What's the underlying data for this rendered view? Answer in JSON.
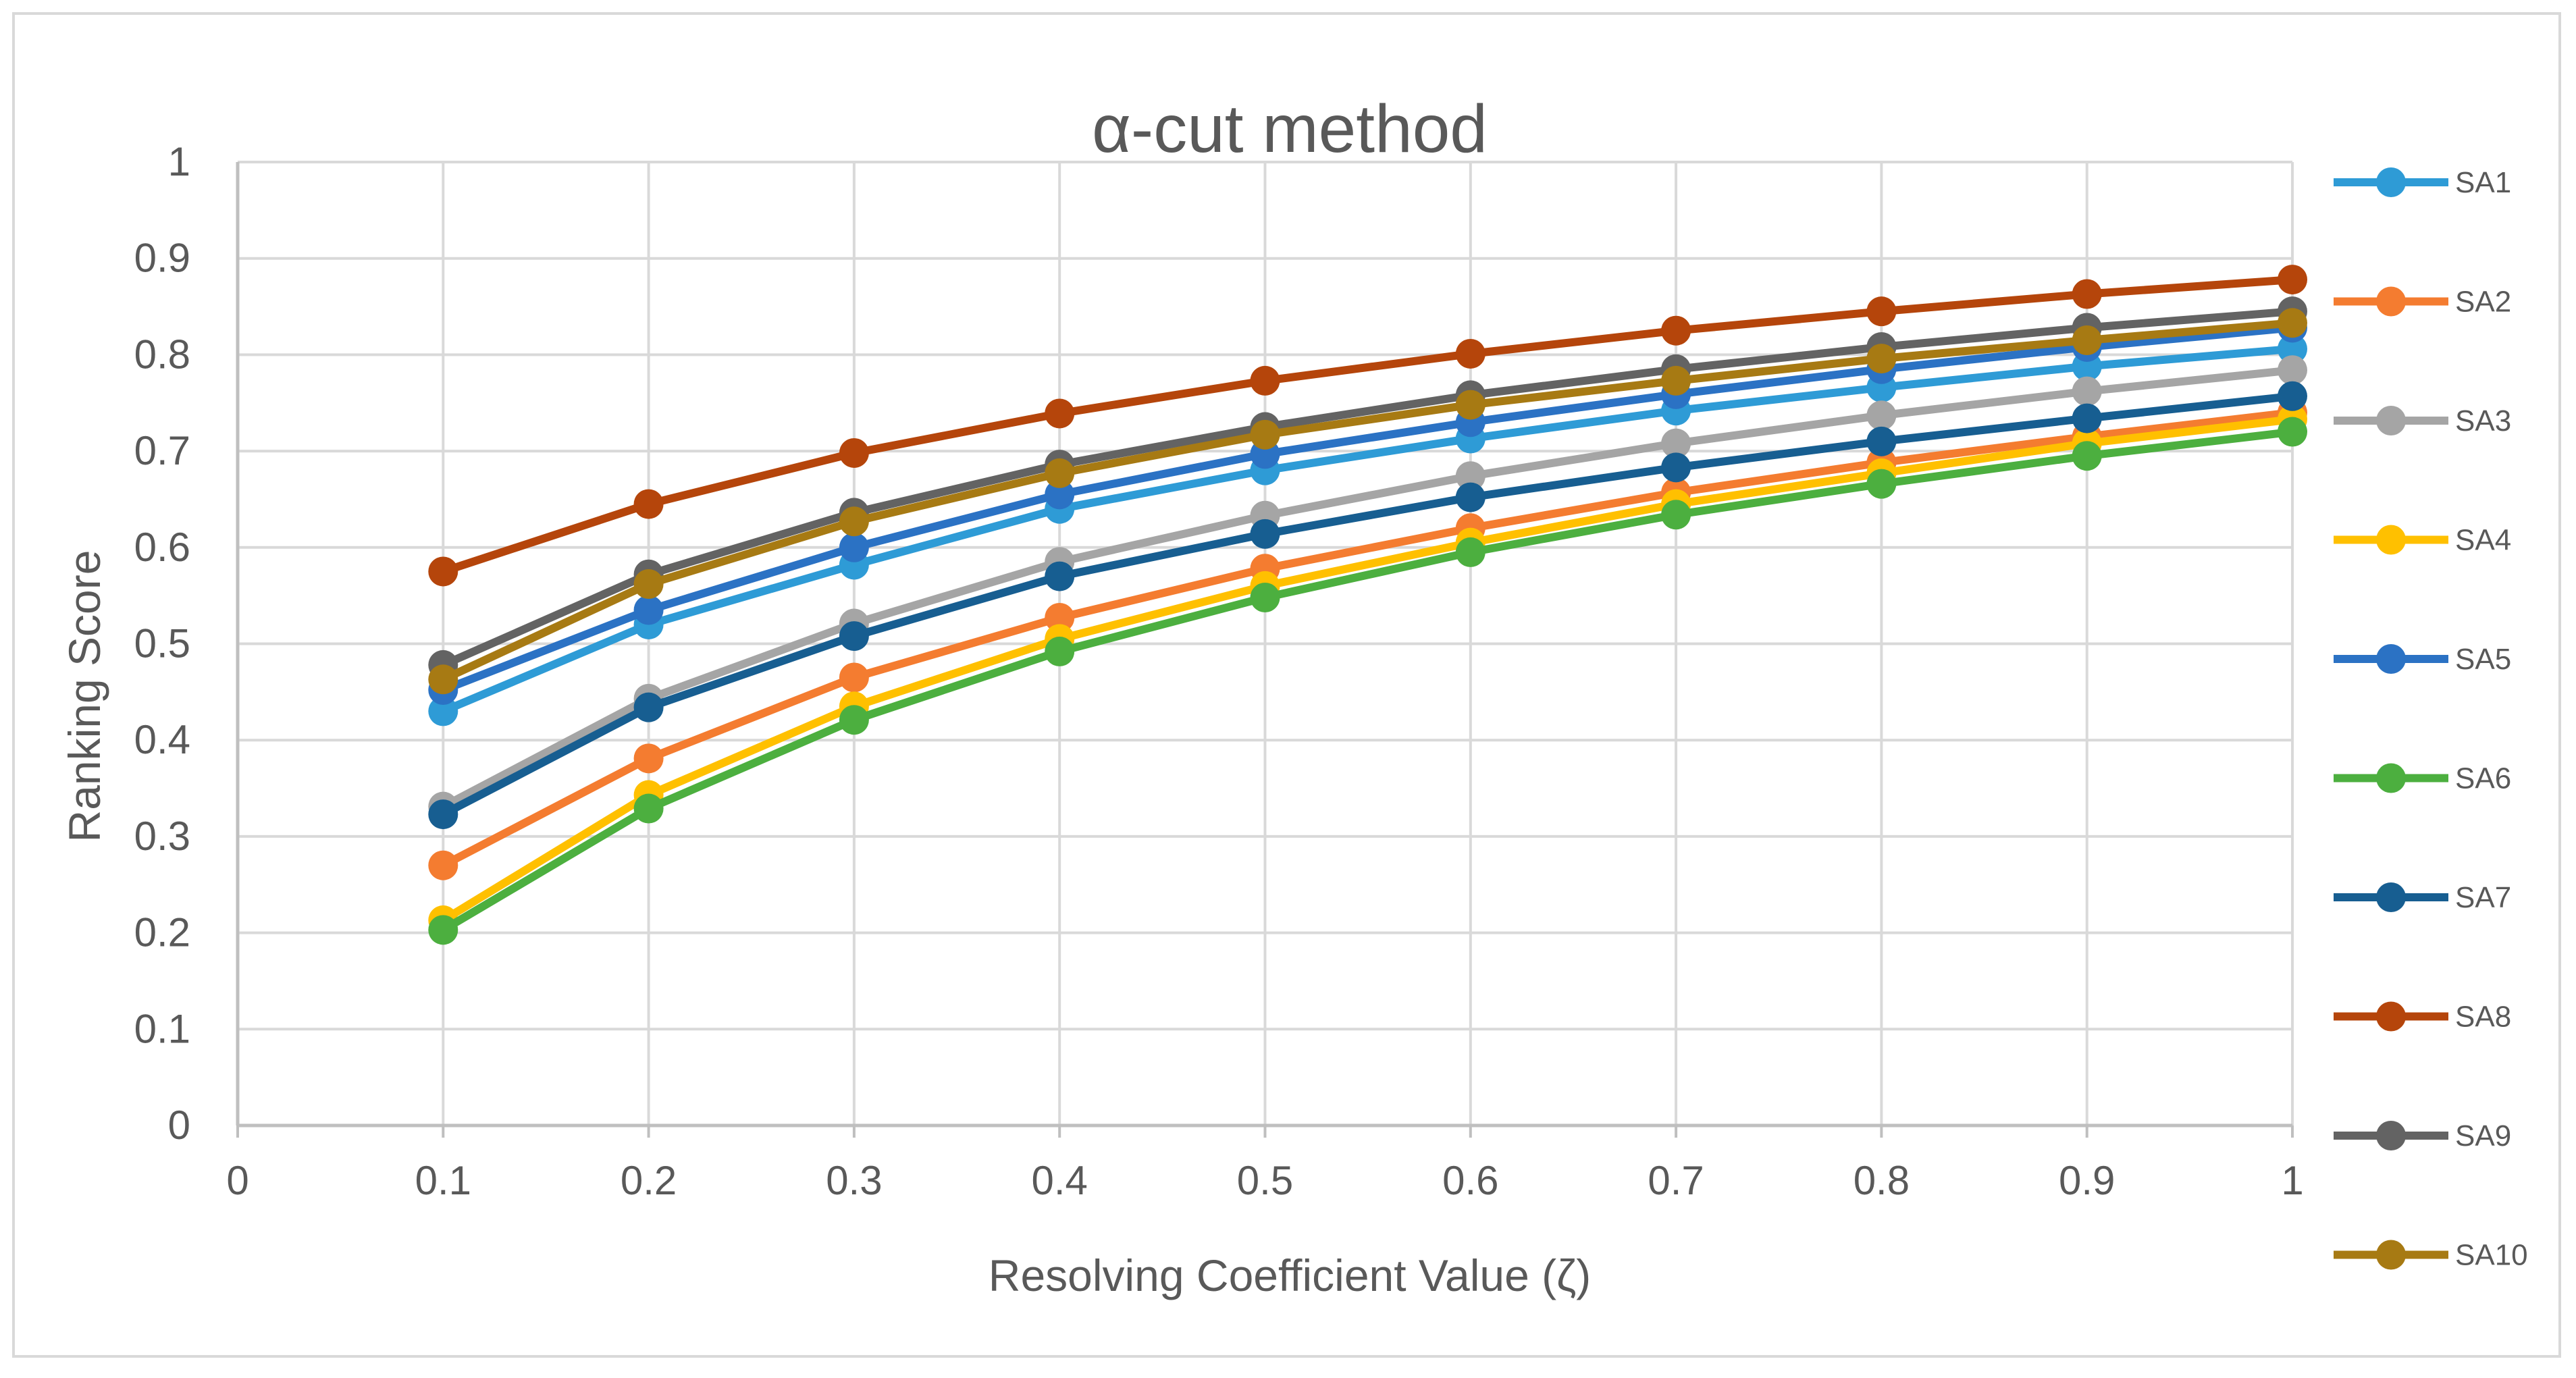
{
  "chart_data": {
    "type": "line",
    "title": "α-cut method",
    "xlabel": "Resolving Coefficient Value (ζ)",
    "ylabel": "Ranking Score",
    "xlim": [
      0,
      1
    ],
    "ylim": [
      0,
      1
    ],
    "x_ticks": [
      "0",
      "0.1",
      "0.2",
      "0.3",
      "0.4",
      "0.5",
      "0.6",
      "0.7",
      "0.8",
      "0.9",
      "1"
    ],
    "y_ticks": [
      "0",
      "0.1",
      "0.2",
      "0.3",
      "0.4",
      "0.5",
      "0.6",
      "0.7",
      "0.8",
      "0.9",
      "1"
    ],
    "grid": true,
    "legend_position": "right",
    "x": [
      0.1,
      0.2,
      0.3,
      0.4,
      0.5,
      0.6,
      0.7,
      0.8,
      0.9,
      1.0
    ],
    "series": [
      {
        "name": "SA1",
        "color": "#2E9BD6",
        "values": [
          0.43,
          0.52,
          0.582,
          0.64,
          0.68,
          0.713,
          0.742,
          0.766,
          0.788,
          0.806
        ]
      },
      {
        "name": "SA2",
        "color": "#F47C30",
        "values": [
          0.27,
          0.381,
          0.465,
          0.527,
          0.578,
          0.62,
          0.657,
          0.688,
          0.715,
          0.74
        ]
      },
      {
        "name": "SA3",
        "color": "#A5A5A5",
        "values": [
          0.331,
          0.443,
          0.521,
          0.585,
          0.633,
          0.674,
          0.708,
          0.737,
          0.762,
          0.784
        ]
      },
      {
        "name": "SA4",
        "color": "#FFC000",
        "values": [
          0.213,
          0.343,
          0.435,
          0.505,
          0.56,
          0.605,
          0.645,
          0.677,
          0.708,
          0.733
        ]
      },
      {
        "name": "SA5",
        "color": "#2B72C4",
        "values": [
          0.452,
          0.535,
          0.6,
          0.655,
          0.697,
          0.73,
          0.759,
          0.785,
          0.808,
          0.828
        ]
      },
      {
        "name": "SA6",
        "color": "#4CAF3F",
        "values": [
          0.203,
          0.329,
          0.421,
          0.492,
          0.548,
          0.595,
          0.634,
          0.666,
          0.695,
          0.72
        ]
      },
      {
        "name": "SA7",
        "color": "#175E91",
        "values": [
          0.323,
          0.434,
          0.508,
          0.57,
          0.614,
          0.652,
          0.683,
          0.71,
          0.734,
          0.757
        ]
      },
      {
        "name": "SA8",
        "color": "#B5450B",
        "values": [
          0.575,
          0.645,
          0.698,
          0.739,
          0.773,
          0.801,
          0.825,
          0.845,
          0.863,
          0.878
        ]
      },
      {
        "name": "SA9",
        "color": "#636363",
        "values": [
          0.478,
          0.572,
          0.636,
          0.686,
          0.725,
          0.758,
          0.785,
          0.808,
          0.828,
          0.845
        ]
      },
      {
        "name": "SA10",
        "color": "#A77A13",
        "values": [
          0.463,
          0.562,
          0.627,
          0.677,
          0.717,
          0.748,
          0.773,
          0.796,
          0.815,
          0.833
        ]
      }
    ]
  }
}
